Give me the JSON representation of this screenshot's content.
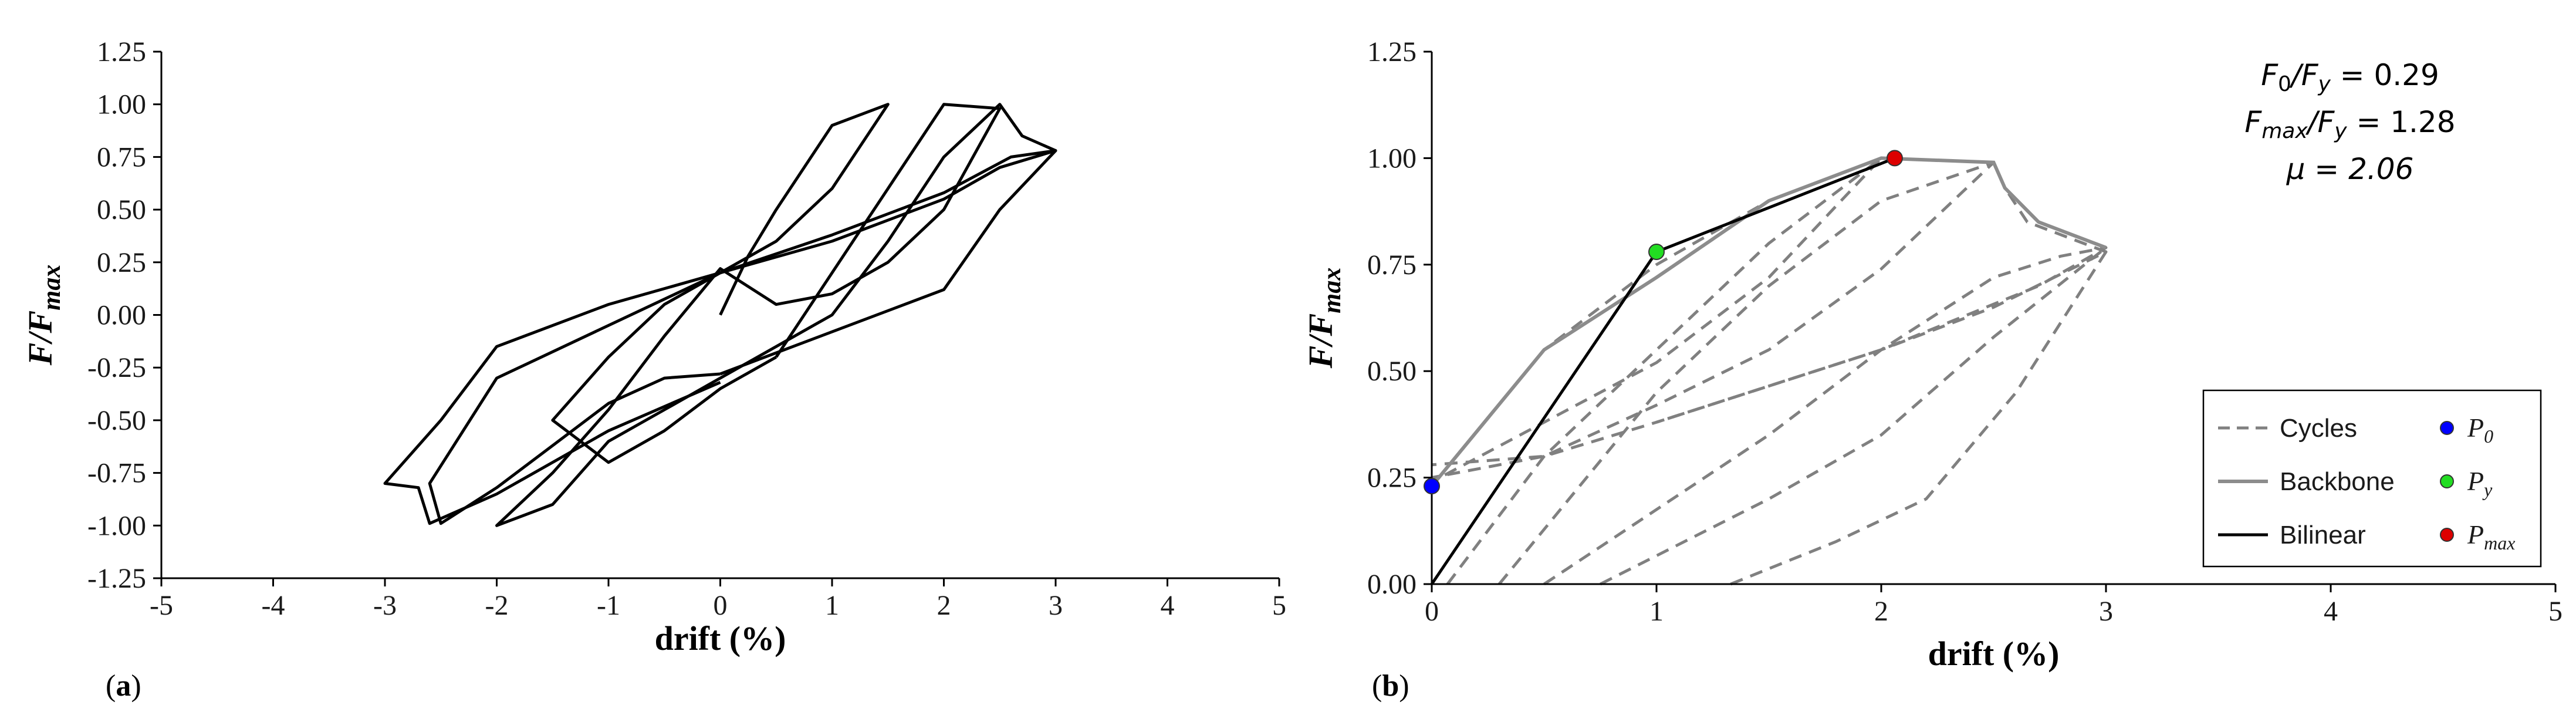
{
  "chart_data": [
    {
      "type": "line",
      "panel_label": "(a)",
      "xlabel": "drift (%)",
      "ylabel": {
        "main": "F/F",
        "sub": "max"
      },
      "xlim": [
        -5,
        5
      ],
      "ylim": [
        -1.25,
        1.25
      ],
      "xticks": [
        "-5",
        "-4",
        "-3",
        "-2",
        "-1",
        "0",
        "1",
        "2",
        "3",
        "4",
        "5"
      ],
      "yticks": [
        "-1.25",
        "-1.00",
        "-0.75",
        "-0.50",
        "-0.25",
        "0.00",
        "0.25",
        "0.50",
        "0.75",
        "1.00",
        "1.25"
      ],
      "grid": false,
      "series": [
        {
          "style": "solid",
          "color": "#000000",
          "points": [
            [
              0,
              0
            ],
            [
              0.25,
              0.28
            ],
            [
              0.5,
              0.5
            ],
            [
              1.0,
              0.9
            ],
            [
              1.5,
              1.0
            ],
            [
              1.0,
              0.6
            ],
            [
              0.5,
              0.35
            ],
            [
              0,
              0.2
            ],
            [
              -0.5,
              0.05
            ],
            [
              -1.0,
              -0.2
            ],
            [
              -1.5,
              -0.5
            ],
            [
              -1.0,
              -0.7
            ],
            [
              -0.5,
              -0.55
            ],
            [
              0,
              -0.35
            ],
            [
              0.5,
              -0.2
            ]
          ]
        },
        {
          "style": "solid",
          "color": "#000000",
          "points": [
            [
              0.5,
              -0.2
            ],
            [
              1.0,
              0.2
            ],
            [
              1.5,
              0.6
            ],
            [
              2.0,
              1.0
            ],
            [
              2.5,
              0.98
            ],
            [
              2.0,
              0.5
            ],
            [
              1.5,
              0.25
            ],
            [
              1.0,
              0.1
            ],
            [
              0.5,
              0.05
            ],
            [
              0,
              0.22
            ],
            [
              -0.5,
              -0.1
            ],
            [
              -1.0,
              -0.45
            ],
            [
              -1.5,
              -0.75
            ],
            [
              -2.0,
              -1.0
            ],
            [
              -1.5,
              -0.9
            ],
            [
              -1.0,
              -0.6
            ],
            [
              -0.5,
              -0.45
            ],
            [
              0,
              -0.3
            ]
          ]
        },
        {
          "style": "solid",
          "color": "#000000",
          "points": [
            [
              0,
              -0.3
            ],
            [
              0.5,
              -0.15
            ],
            [
              1.0,
              0.0
            ],
            [
              1.5,
              0.35
            ],
            [
              2.0,
              0.75
            ],
            [
              2.5,
              1.0
            ],
            [
              2.7,
              0.85
            ],
            [
              3.0,
              0.78
            ],
            [
              2.6,
              0.75
            ],
            [
              2.0,
              0.58
            ],
            [
              1.0,
              0.38
            ],
            [
              0,
              0.2
            ],
            [
              -1.0,
              -0.05
            ],
            [
              -2.0,
              -0.3
            ],
            [
              -2.6,
              -0.8
            ],
            [
              -2.5,
              -0.99
            ],
            [
              -2.0,
              -0.82
            ],
            [
              -1.5,
              -0.62
            ],
            [
              -1.0,
              -0.42
            ],
            [
              -0.5,
              -0.3
            ],
            [
              0,
              -0.28
            ]
          ]
        },
        {
          "style": "solid",
          "color": "#000000",
          "points": [
            [
              0,
              -0.28
            ],
            [
              1.0,
              -0.08
            ],
            [
              2.0,
              0.12
            ],
            [
              2.5,
              0.5
            ],
            [
              3.0,
              0.78
            ],
            [
              2.5,
              0.7
            ],
            [
              2.0,
              0.55
            ],
            [
              1.0,
              0.35
            ],
            [
              0,
              0.2
            ],
            [
              -1.0,
              0.05
            ],
            [
              -2.0,
              -0.15
            ],
            [
              -2.5,
              -0.5
            ],
            [
              -3.0,
              -0.8
            ],
            [
              -2.7,
              -0.82
            ],
            [
              -2.6,
              -0.99
            ],
            [
              -2.0,
              -0.85
            ],
            [
              -1.0,
              -0.55
            ],
            [
              0,
              -0.32
            ]
          ]
        }
      ]
    },
    {
      "type": "line",
      "panel_label": "(b)",
      "xlabel": "drift (%)",
      "ylabel": {
        "main": "F/F",
        "sub": "max"
      },
      "xlim": [
        0,
        5
      ],
      "ylim": [
        0,
        1.25
      ],
      "xticks": [
        "0",
        "1",
        "2",
        "3",
        "4",
        "5"
      ],
      "yticks": [
        "0.00",
        "0.25",
        "0.50",
        "0.75",
        "1.00",
        "1.25"
      ],
      "grid": false,
      "annotations": {
        "line1": {
          "pre": "F",
          "sub": "0",
          "mid": "/F",
          "sub2": "y",
          "post": " = 0.29"
        },
        "line2": {
          "pre": "F",
          "sub": "max",
          "mid": "/F",
          "sub2": "y",
          "post": " = 1.28"
        },
        "line3": {
          "text": "μ = 2.06"
        }
      },
      "legend": {
        "position": "bottom-right",
        "cycles": "Cycles",
        "backbone": "Backbone",
        "bilinear": "Bilinear",
        "p0": {
          "main": "P",
          "sub": "0"
        },
        "py": {
          "main": "P",
          "sub": "y"
        },
        "pmax": {
          "main": "P",
          "sub": "max"
        }
      },
      "colors": {
        "cycles": "#808080",
        "backbone": "#8c8c8c",
        "bilinear": "#000000",
        "p0": "#0000ff",
        "py": "#22dd22",
        "pmax": "#dd0000"
      },
      "cycles": [
        [
          [
            0,
            0.23
          ],
          [
            0.5,
            0.55
          ],
          [
            1.0,
            0.75
          ],
          [
            1.5,
            0.9
          ],
          [
            2.0,
            1.0
          ],
          [
            1.5,
            0.72
          ],
          [
            1.0,
            0.52
          ],
          [
            0.5,
            0.38
          ],
          [
            0,
            0.24
          ]
        ],
        [
          [
            0.07,
            0
          ],
          [
            0.5,
            0.3
          ],
          [
            1.0,
            0.55
          ],
          [
            1.5,
            0.8
          ],
          [
            2.0,
            1.0
          ],
          [
            2.5,
            0.99
          ],
          [
            2.0,
            0.74
          ],
          [
            1.5,
            0.55
          ],
          [
            1.0,
            0.42
          ],
          [
            0.5,
            0.3
          ],
          [
            0,
            0.28
          ]
        ],
        [
          [
            0.3,
            0
          ],
          [
            1.0,
            0.45
          ],
          [
            1.5,
            0.7
          ],
          [
            2.0,
            0.9
          ],
          [
            2.5,
            0.99
          ],
          [
            2.55,
            0.93
          ],
          [
            2.65,
            0.85
          ],
          [
            3.0,
            0.78
          ],
          [
            2.5,
            0.65
          ],
          [
            2.0,
            0.55
          ],
          [
            1.0,
            0.38
          ],
          [
            0.5,
            0.3
          ],
          [
            0,
            0.25
          ]
        ],
        [
          [
            0.5,
            0
          ],
          [
            1.5,
            0.35
          ],
          [
            2.0,
            0.55
          ],
          [
            2.5,
            0.72
          ],
          [
            2.8,
            0.77
          ],
          [
            3.0,
            0.79
          ],
          [
            2.7,
            0.7
          ],
          [
            2.0,
            0.55
          ],
          [
            1.0,
            0.38
          ]
        ],
        [
          [
            0.75,
            0
          ],
          [
            1.5,
            0.2
          ],
          [
            2.0,
            0.35
          ],
          [
            2.5,
            0.58
          ],
          [
            3.0,
            0.79
          ]
        ],
        [
          [
            1.33,
            0
          ],
          [
            1.8,
            0.1
          ],
          [
            2.2,
            0.2
          ],
          [
            2.6,
            0.45
          ],
          [
            3.0,
            0.78
          ]
        ]
      ],
      "backbone": [
        [
          0,
          0.23
        ],
        [
          0.5,
          0.55
        ],
        [
          1.0,
          0.72
        ],
        [
          1.5,
          0.9
        ],
        [
          2.0,
          1.0
        ],
        [
          2.5,
          0.99
        ],
        [
          2.55,
          0.93
        ],
        [
          2.7,
          0.85
        ],
        [
          3.0,
          0.79
        ]
      ],
      "bilinear": [
        [
          0,
          0
        ],
        [
          1.0,
          0.78
        ],
        [
          2.06,
          1.0
        ]
      ],
      "points": {
        "p0": [
          0,
          0.23
        ],
        "py": [
          1.0,
          0.78
        ],
        "pmax": [
          2.06,
          1.0
        ]
      }
    }
  ]
}
